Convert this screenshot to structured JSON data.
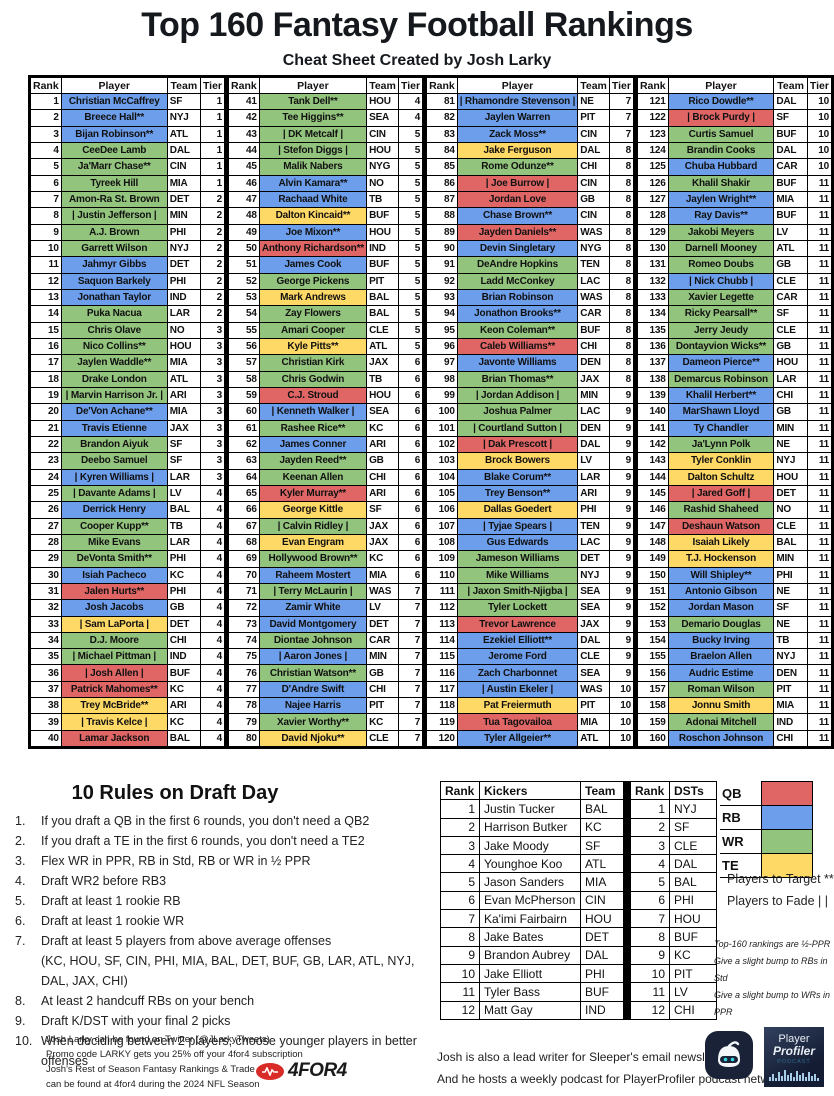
{
  "title": "Top 160 Fantasy Football Rankings",
  "subtitle": "Cheat Sheet Created by Josh Larky",
  "table_headers": {
    "rank": "Rank",
    "player": "Player",
    "team": "Team",
    "tier": "Tier"
  },
  "positions_colors": {
    "QB": "#e06666",
    "RB": "#6d9eeb",
    "WR": "#93c47d",
    "TE": "#ffd966"
  },
  "players": [
    [
      1,
      "Christian McCaffrey",
      "SF",
      1,
      "RB"
    ],
    [
      2,
      "Breece Hall**",
      "NYJ",
      1,
      "RB"
    ],
    [
      3,
      "Bijan Robinson**",
      "ATL",
      1,
      "RB"
    ],
    [
      4,
      "CeeDee Lamb",
      "DAL",
      1,
      "WR"
    ],
    [
      5,
      "Ja'Marr Chase**",
      "CIN",
      1,
      "WR"
    ],
    [
      6,
      "Tyreek Hill",
      "MIA",
      1,
      "WR"
    ],
    [
      7,
      "Amon-Ra St. Brown",
      "DET",
      2,
      "WR"
    ],
    [
      8,
      "| Justin Jefferson |",
      "MIN",
      2,
      "WR"
    ],
    [
      9,
      "A.J. Brown",
      "PHI",
      2,
      "WR"
    ],
    [
      10,
      "Garrett Wilson",
      "NYJ",
      2,
      "WR"
    ],
    [
      11,
      "Jahmyr Gibbs",
      "DET",
      2,
      "RB"
    ],
    [
      12,
      "Saquon Barkely",
      "PHI",
      2,
      "RB"
    ],
    [
      13,
      "Jonathan Taylor",
      "IND",
      2,
      "RB"
    ],
    [
      14,
      "Puka Nacua",
      "LAR",
      2,
      "WR"
    ],
    [
      15,
      "Chris Olave",
      "NO",
      3,
      "WR"
    ],
    [
      16,
      "Nico Collins**",
      "HOU",
      3,
      "WR"
    ],
    [
      17,
      "Jaylen Waddle**",
      "MIA",
      3,
      "WR"
    ],
    [
      18,
      "Drake London",
      "ATL",
      3,
      "WR"
    ],
    [
      19,
      "| Marvin Harrison Jr. |",
      "ARI",
      3,
      "WR"
    ],
    [
      20,
      "De'Von Achane**",
      "MIA",
      3,
      "RB"
    ],
    [
      21,
      "Travis Etienne",
      "JAX",
      3,
      "RB"
    ],
    [
      22,
      "Brandon Aiyuk",
      "SF",
      3,
      "WR"
    ],
    [
      23,
      "Deebo Samuel",
      "SF",
      3,
      "WR"
    ],
    [
      24,
      "| Kyren Williams |",
      "LAR",
      3,
      "RB"
    ],
    [
      25,
      "| Davante Adams |",
      "LV",
      4,
      "WR"
    ],
    [
      26,
      "Derrick Henry",
      "BAL",
      4,
      "RB"
    ],
    [
      27,
      "Cooper Kupp**",
      "TB",
      4,
      "WR"
    ],
    [
      28,
      "Mike Evans",
      "LAR",
      4,
      "WR"
    ],
    [
      29,
      "DeVonta Smith**",
      "PHI",
      4,
      "WR"
    ],
    [
      30,
      "Isiah Pacheco",
      "KC",
      4,
      "RB"
    ],
    [
      31,
      "Jalen Hurts**",
      "PHI",
      4,
      "QB"
    ],
    [
      32,
      "Josh Jacobs",
      "GB",
      4,
      "RB"
    ],
    [
      33,
      "| Sam LaPorta |",
      "DET",
      4,
      "TE"
    ],
    [
      34,
      "D.J. Moore",
      "CHI",
      4,
      "WR"
    ],
    [
      35,
      "| Michael Pittman |",
      "IND",
      4,
      "WR"
    ],
    [
      36,
      "| Josh Allen |",
      "BUF",
      4,
      "QB"
    ],
    [
      37,
      "Patrick Mahomes**",
      "KC",
      4,
      "QB"
    ],
    [
      38,
      "Trey McBride**",
      "ARI",
      4,
      "TE"
    ],
    [
      39,
      "| Travis Kelce |",
      "KC",
      4,
      "TE"
    ],
    [
      40,
      "Lamar Jackson",
      "BAL",
      4,
      "QB"
    ],
    [
      41,
      "Tank Dell**",
      "HOU",
      4,
      "WR"
    ],
    [
      42,
      "Tee Higgins**",
      "SEA",
      4,
      "WR"
    ],
    [
      43,
      "| DK Metcalf |",
      "CIN",
      5,
      "WR"
    ],
    [
      44,
      "| Stefon Diggs |",
      "HOU",
      5,
      "WR"
    ],
    [
      45,
      "Malik Nabers",
      "NYG",
      5,
      "WR"
    ],
    [
      46,
      "Alvin Kamara**",
      "NO",
      5,
      "RB"
    ],
    [
      47,
      "Rachaad White",
      "TB",
      5,
      "RB"
    ],
    [
      48,
      "Dalton Kincaid**",
      "BUF",
      5,
      "TE"
    ],
    [
      49,
      "Joe Mixon**",
      "HOU",
      5,
      "RB"
    ],
    [
      50,
      "Anthony Richardson**",
      "IND",
      5,
      "QB"
    ],
    [
      51,
      "James Cook",
      "BUF",
      5,
      "RB"
    ],
    [
      52,
      "George Pickens",
      "PIT",
      5,
      "WR"
    ],
    [
      53,
      "Mark Andrews",
      "BAL",
      5,
      "TE"
    ],
    [
      54,
      "Zay Flowers",
      "BAL",
      5,
      "WR"
    ],
    [
      55,
      "Amari Cooper",
      "CLE",
      5,
      "WR"
    ],
    [
      56,
      "Kyle Pitts**",
      "ATL",
      5,
      "TE"
    ],
    [
      57,
      "Christian Kirk",
      "JAX",
      6,
      "WR"
    ],
    [
      58,
      "Chris Godwin",
      "TB",
      6,
      "WR"
    ],
    [
      59,
      "C.J. Stroud",
      "HOU",
      6,
      "QB"
    ],
    [
      60,
      "| Kenneth Walker |",
      "SEA",
      6,
      "RB"
    ],
    [
      61,
      "Rashee Rice**",
      "KC",
      6,
      "WR"
    ],
    [
      62,
      "James Conner",
      "ARI",
      6,
      "RB"
    ],
    [
      63,
      "Jayden Reed**",
      "GB",
      6,
      "WR"
    ],
    [
      64,
      "Keenan Allen",
      "CHI",
      6,
      "WR"
    ],
    [
      65,
      "Kyler Murray**",
      "ARI",
      6,
      "QB"
    ],
    [
      66,
      "George Kittle",
      "SF",
      6,
      "TE"
    ],
    [
      67,
      "| Calvin Ridley |",
      "JAX",
      6,
      "WR"
    ],
    [
      68,
      "Evan Engram",
      "JAX",
      6,
      "TE"
    ],
    [
      69,
      "Hollywood Brown**",
      "KC",
      6,
      "WR"
    ],
    [
      70,
      "Raheem Mostert",
      "MIA",
      6,
      "RB"
    ],
    [
      71,
      "| Terry McLaurin |",
      "WAS",
      7,
      "WR"
    ],
    [
      72,
      "Zamir White",
      "LV",
      7,
      "RB"
    ],
    [
      73,
      "David Montgomery",
      "DET",
      7,
      "RB"
    ],
    [
      74,
      "Diontae Johnson",
      "CAR",
      7,
      "WR"
    ],
    [
      75,
      "| Aaron Jones |",
      "MIN",
      7,
      "RB"
    ],
    [
      76,
      "Christian Watson**",
      "GB",
      7,
      "WR"
    ],
    [
      77,
      "D'Andre Swift",
      "CHI",
      7,
      "RB"
    ],
    [
      78,
      "Najee Harris",
      "PIT",
      7,
      "RB"
    ],
    [
      79,
      "Xavier Worthy**",
      "KC",
      7,
      "WR"
    ],
    [
      80,
      "David Njoku**",
      "CLE",
      7,
      "TE"
    ],
    [
      81,
      "| Rhamondre Stevenson |",
      "NE",
      7,
      "RB"
    ],
    [
      82,
      "Jaylen Warren",
      "PIT",
      7,
      "RB"
    ],
    [
      83,
      "Zack Moss**",
      "CIN",
      7,
      "RB"
    ],
    [
      84,
      "Jake Ferguson",
      "DAL",
      8,
      "TE"
    ],
    [
      85,
      "Rome Odunze**",
      "CHI",
      8,
      "WR"
    ],
    [
      86,
      "| Joe Burrow |",
      "CIN",
      8,
      "QB"
    ],
    [
      87,
      "Jordan Love",
      "GB",
      8,
      "QB"
    ],
    [
      88,
      "Chase Brown**",
      "CIN",
      8,
      "RB"
    ],
    [
      89,
      "Jayden Daniels**",
      "WAS",
      8,
      "QB"
    ],
    [
      90,
      "Devin Singletary",
      "NYG",
      8,
      "RB"
    ],
    [
      91,
      "DeAndre Hopkins",
      "TEN",
      8,
      "WR"
    ],
    [
      92,
      "Ladd McConkey",
      "LAC",
      8,
      "WR"
    ],
    [
      93,
      "Brian Robinson",
      "WAS",
      8,
      "RB"
    ],
    [
      94,
      "Jonathon Brooks**",
      "CAR",
      8,
      "RB"
    ],
    [
      95,
      "Keon Coleman**",
      "BUF",
      8,
      "WR"
    ],
    [
      96,
      "Caleb Williams**",
      "CHI",
      8,
      "QB"
    ],
    [
      97,
      "Javonte Williams",
      "DEN",
      8,
      "RB"
    ],
    [
      98,
      "Brian Thomas**",
      "JAX",
      8,
      "WR"
    ],
    [
      99,
      "| Jordan Addison |",
      "MIN",
      9,
      "WR"
    ],
    [
      100,
      "Joshua Palmer",
      "LAC",
      9,
      "WR"
    ],
    [
      101,
      "| Courtland Sutton |",
      "DEN",
      9,
      "WR"
    ],
    [
      102,
      "| Dak Prescott |",
      "DAL",
      9,
      "QB"
    ],
    [
      103,
      "Brock Bowers",
      "LV",
      9,
      "TE"
    ],
    [
      104,
      "Blake Corum**",
      "LAR",
      9,
      "RB"
    ],
    [
      105,
      "Trey Benson**",
      "ARI",
      9,
      "RB"
    ],
    [
      106,
      "Dallas Goedert",
      "PHI",
      9,
      "TE"
    ],
    [
      107,
      "| Tyjae Spears |",
      "TEN",
      9,
      "RB"
    ],
    [
      108,
      "Gus Edwards",
      "LAC",
      9,
      "RB"
    ],
    [
      109,
      "Jameson Williams",
      "DET",
      9,
      "WR"
    ],
    [
      110,
      "Mike Williams",
      "NYJ",
      9,
      "WR"
    ],
    [
      111,
      "| Jaxon Smith-Njigba |",
      "SEA",
      9,
      "WR"
    ],
    [
      112,
      "Tyler Lockett",
      "SEA",
      9,
      "WR"
    ],
    [
      113,
      "Trevor Lawrence",
      "JAX",
      9,
      "QB"
    ],
    [
      114,
      "Ezekiel Elliott**",
      "DAL",
      9,
      "RB"
    ],
    [
      115,
      "Jerome Ford",
      "CLE",
      9,
      "RB"
    ],
    [
      116,
      "Zach Charbonnet",
      "SEA",
      9,
      "RB"
    ],
    [
      117,
      "| Austin Ekeler |",
      "WAS",
      10,
      "RB"
    ],
    [
      118,
      "Pat Freiermuth",
      "PIT",
      10,
      "TE"
    ],
    [
      119,
      "Tua Tagovailoa",
      "MIA",
      10,
      "QB"
    ],
    [
      120,
      "Tyler Allgeier**",
      "ATL",
      10,
      "RB"
    ],
    [
      121,
      "Rico Dowdle**",
      "DAL",
      10,
      "RB"
    ],
    [
      122,
      "| Brock Purdy |",
      "SF",
      10,
      "QB"
    ],
    [
      123,
      "Curtis Samuel",
      "BUF",
      10,
      "WR"
    ],
    [
      124,
      "Brandin Cooks",
      "DAL",
      10,
      "WR"
    ],
    [
      125,
      "Chuba Hubbard",
      "CAR",
      10,
      "RB"
    ],
    [
      126,
      "Khalil Shakir",
      "BUF",
      11,
      "WR"
    ],
    [
      127,
      "Jaylen Wright**",
      "MIA",
      11,
      "RB"
    ],
    [
      128,
      "Ray Davis**",
      "BUF",
      11,
      "RB"
    ],
    [
      129,
      "Jakobi Meyers",
      "LV",
      11,
      "WR"
    ],
    [
      130,
      "Darnell Mooney",
      "ATL",
      11,
      "WR"
    ],
    [
      131,
      "Romeo Doubs",
      "GB",
      11,
      "WR"
    ],
    [
      132,
      "| Nick Chubb |",
      "CLE",
      11,
      "RB"
    ],
    [
      133,
      "Xavier Legette",
      "CAR",
      11,
      "WR"
    ],
    [
      134,
      "Ricky Pearsall**",
      "SF",
      11,
      "WR"
    ],
    [
      135,
      "Jerry Jeudy",
      "CLE",
      11,
      "WR"
    ],
    [
      136,
      "Dontayvion Wicks**",
      "GB",
      11,
      "WR"
    ],
    [
      137,
      "Dameon Pierce**",
      "HOU",
      11,
      "RB"
    ],
    [
      138,
      "Demarcus Robinson",
      "LAR",
      11,
      "WR"
    ],
    [
      139,
      "Khalil Herbert**",
      "CHI",
      11,
      "RB"
    ],
    [
      140,
      "MarShawn Lloyd",
      "GB",
      11,
      "RB"
    ],
    [
      141,
      "Ty Chandler",
      "MIN",
      11,
      "RB"
    ],
    [
      142,
      "Ja'Lynn Polk",
      "NE",
      11,
      "WR"
    ],
    [
      143,
      "Tyler Conklin",
      "NYJ",
      11,
      "TE"
    ],
    [
      144,
      "Dalton Schultz",
      "HOU",
      11,
      "TE"
    ],
    [
      145,
      "| Jared Goff |",
      "DET",
      11,
      "QB"
    ],
    [
      146,
      "Rashid Shaheed",
      "NO",
      11,
      "WR"
    ],
    [
      147,
      "Deshaun Watson",
      "CLE",
      11,
      "QB"
    ],
    [
      148,
      "Isaiah Likely",
      "BAL",
      11,
      "TE"
    ],
    [
      149,
      "T.J. Hockenson",
      "MIN",
      11,
      "TE"
    ],
    [
      150,
      "Will Shipley**",
      "PHI",
      11,
      "RB"
    ],
    [
      151,
      "Antonio Gibson",
      "NE",
      11,
      "RB"
    ],
    [
      152,
      "Jordan Mason",
      "SF",
      11,
      "RB"
    ],
    [
      153,
      "Demario Douglas",
      "NE",
      11,
      "WR"
    ],
    [
      154,
      "Bucky Irving",
      "TB",
      11,
      "RB"
    ],
    [
      155,
      "Braelon Allen",
      "NYJ",
      11,
      "RB"
    ],
    [
      156,
      "Audric Estime",
      "DEN",
      11,
      "RB"
    ],
    [
      157,
      "Roman Wilson",
      "PIT",
      11,
      "WR"
    ],
    [
      158,
      "Jonnu Smith",
      "MIA",
      11,
      "TE"
    ],
    [
      159,
      "Adonai Mitchell",
      "IND",
      11,
      "WR"
    ],
    [
      160,
      "Roschon Johnson",
      "CHI",
      11,
      "RB"
    ]
  ],
  "rules": {
    "heading": "10 Rules on Draft Day",
    "items": [
      {
        "num": "1.",
        "text": "If you draft a QB in the first 6 rounds, you don't need a QB2"
      },
      {
        "num": "2.",
        "text": "If you draft a TE in the first 6 rounds, you don't need a TE2"
      },
      {
        "num": "3.",
        "text": "Flex WR in PPR, RB in Std, RB or WR in ½ PPR"
      },
      {
        "num": "4.",
        "text": "Draft WR2 before RB3"
      },
      {
        "num": "5.",
        "text": "Draft at least 1 rookie RB"
      },
      {
        "num": "6.",
        "text": "Draft at least 1 rookie WR"
      },
      {
        "num": "7.",
        "text": "Draft at least 5 players from above average offenses",
        "note": "(KC, HOU, SF, CIN, PHI, MIA, BAL, DET, BUF, GB, LAR, ATL, NYJ, DAL, JAX, CHI)"
      },
      {
        "num": "8.",
        "text": "At least 2 handcuff RBs on your bench"
      },
      {
        "num": "9.",
        "text": "Draft K/DST with your final 2 picks"
      },
      {
        "num": "10.",
        "text": "When deciding between 2 players, choose younger players in better offenses"
      }
    ]
  },
  "kickers": {
    "headers": {
      "rank": "Rank",
      "name": "Kickers",
      "team": "Team"
    },
    "rows": [
      [
        1,
        "Justin Tucker",
        "BAL"
      ],
      [
        2,
        "Harrison Butker",
        "KC"
      ],
      [
        3,
        "Jake Moody",
        "SF"
      ],
      [
        4,
        "Younghoe Koo",
        "ATL"
      ],
      [
        5,
        "Jason Sanders",
        "MIA"
      ],
      [
        6,
        "Evan McPherson",
        "CIN"
      ],
      [
        7,
        "Ka'imi Fairbairn",
        "HOU"
      ],
      [
        8,
        "Jake Bates",
        "DET"
      ],
      [
        9,
        "Brandon Aubrey",
        "DAL"
      ],
      [
        10,
        "Jake Elliott",
        "PHI"
      ],
      [
        11,
        "Tyler Bass",
        "BUF"
      ],
      [
        12,
        "Matt Gay",
        "IND"
      ]
    ]
  },
  "dsts": {
    "headers": {
      "rank": "Rank",
      "team": "DSTs"
    },
    "rows": [
      [
        1,
        "NYJ"
      ],
      [
        2,
        "SF"
      ],
      [
        3,
        "CLE"
      ],
      [
        4,
        "DAL"
      ],
      [
        5,
        "BAL"
      ],
      [
        6,
        "PHI"
      ],
      [
        7,
        "HOU"
      ],
      [
        8,
        "BUF"
      ],
      [
        9,
        "KC"
      ],
      [
        10,
        "PIT"
      ],
      [
        11,
        "LV"
      ],
      [
        12,
        "CHI"
      ]
    ]
  },
  "legend": {
    "items": [
      {
        "label": "QB",
        "color": "#e06666"
      },
      {
        "label": "RB",
        "color": "#6d9eeb"
      },
      {
        "label": "WR",
        "color": "#93c47d"
      },
      {
        "label": "TE",
        "color": "#ffd966"
      }
    ],
    "target": "Players to Target **",
    "fade": "Players to Fade | |"
  },
  "notes": [
    "Top-160 rankings are ½-PPR",
    "Give a slight bump to RBs in Std",
    "Give a slight bump to WRs in PPR"
  ],
  "footer_left": {
    "lines": [
      "Josh Larky can be found on Twitter (@JLarkyTweets)",
      "Promo code LARKY gets you 25% off your 4for4 subscription",
      "Josh's Rest of Season Fantasy Rankings & Trade Chart",
      "can be found at 4for4 during the 2024 NFL Season"
    ],
    "logo_text": "4FOR4"
  },
  "footer_right": {
    "lines": [
      "Josh is also a lead writer for Sleeper's email newsletter",
      "And he hosts a weekly podcast for PlayerProfiler podcast network"
    ],
    "pp_logo": {
      "line1": "Player",
      "line2": "Profiler",
      "line3": "PODCAST"
    }
  }
}
